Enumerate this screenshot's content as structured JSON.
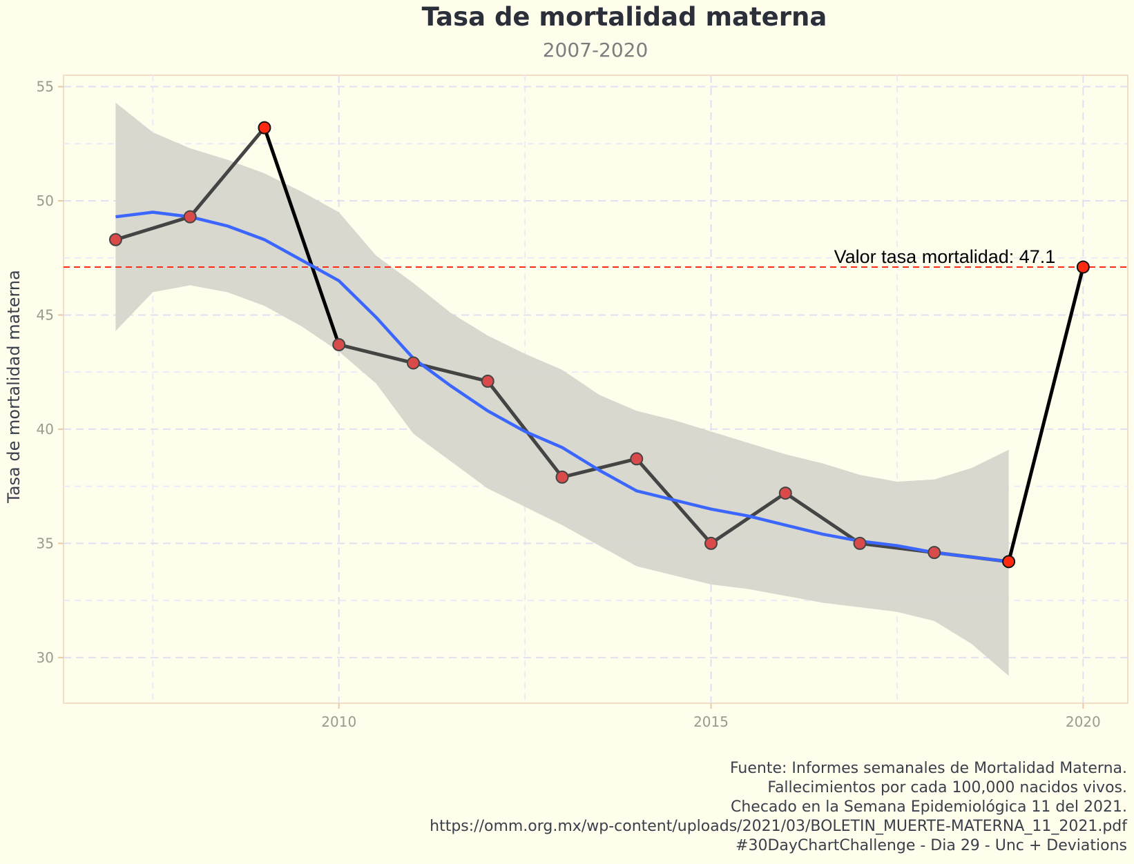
{
  "chart_data": {
    "type": "line",
    "title": "Tasa de mortalidad materna",
    "subtitle": "2007-2020",
    "xlabel": "",
    "ylabel": "Tasa de mortalidad materna",
    "xlim": [
      2006.3,
      2020.6
    ],
    "ylim": [
      28,
      55.5
    ],
    "x_ticks": [
      2010,
      2015,
      2020
    ],
    "y_ticks": [
      30,
      35,
      40,
      45,
      50,
      55
    ],
    "grid": true,
    "series": [
      {
        "x": [
          2007,
          2008,
          2009,
          2010,
          2011,
          2012,
          2013,
          2014,
          2015,
          2016,
          2017,
          2018,
          2019,
          2020
        ],
        "values": [
          48.3,
          49.3,
          53.2,
          43.7,
          42.9,
          42.1,
          37.9,
          38.7,
          35.0,
          37.2,
          35.0,
          34.6,
          34.2,
          47.1
        ],
        "highlight": [
          2009,
          2019,
          2020
        ]
      }
    ],
    "smooth": {
      "x": [
        2007,
        2007.5,
        2008,
        2008.5,
        2009,
        2009.5,
        2010,
        2010.5,
        2011,
        2011.5,
        2012,
        2012.5,
        2013,
        2013.5,
        2014,
        2014.5,
        2015,
        2015.5,
        2016,
        2016.5,
        2017,
        2017.5,
        2018,
        2018.5,
        2019
      ],
      "values": [
        49.3,
        49.5,
        49.3,
        48.9,
        48.3,
        47.4,
        46.5,
        44.9,
        43.1,
        41.9,
        40.8,
        39.9,
        39.2,
        38.2,
        37.3,
        36.9,
        36.5,
        36.2,
        35.8,
        35.4,
        35.1,
        34.9,
        34.6,
        34.4,
        34.2
      ],
      "ci_upper": [
        54.3,
        53.0,
        52.3,
        51.8,
        51.2,
        50.4,
        49.5,
        47.6,
        46.4,
        45.1,
        44.1,
        43.3,
        42.6,
        41.5,
        40.8,
        40.4,
        39.9,
        39.4,
        38.9,
        38.5,
        38.0,
        37.7,
        37.8,
        38.3,
        39.1
      ],
      "ci_lower": [
        44.3,
        46.0,
        46.3,
        46.0,
        45.4,
        44.5,
        43.4,
        42.0,
        39.8,
        38.6,
        37.4,
        36.6,
        35.8,
        34.9,
        34.0,
        33.6,
        33.2,
        33.0,
        32.7,
        32.4,
        32.2,
        32.0,
        31.6,
        30.6,
        29.2
      ],
      "color": "#3b66ff"
    },
    "reference_line": {
      "value": 47.1,
      "label": "Valor tasa mortalidad: 47.1",
      "color": "#ff2a1a"
    },
    "colors": {
      "line": "#444444",
      "point_fill": "#d94a4a",
      "highlight_fill": "#ff2a10",
      "ribbon": "#d6d6ce",
      "background": "#fffdec"
    }
  },
  "caption": {
    "lines": [
      "Fuente: Informes semanales de Mortalidad Materna.",
      "Fallecimientos por cada 100,000 nacidos vivos.",
      "Checado en la Semana Epidemiológica 11 del 2021.",
      "https://omm.org.mx/wp-content/uploads/2021/03/BOLETIN_MUERTE-MATERNA_11_2021.pdf",
      "#30DayChartChallenge - Dia 29 - Unc + Deviations"
    ]
  }
}
